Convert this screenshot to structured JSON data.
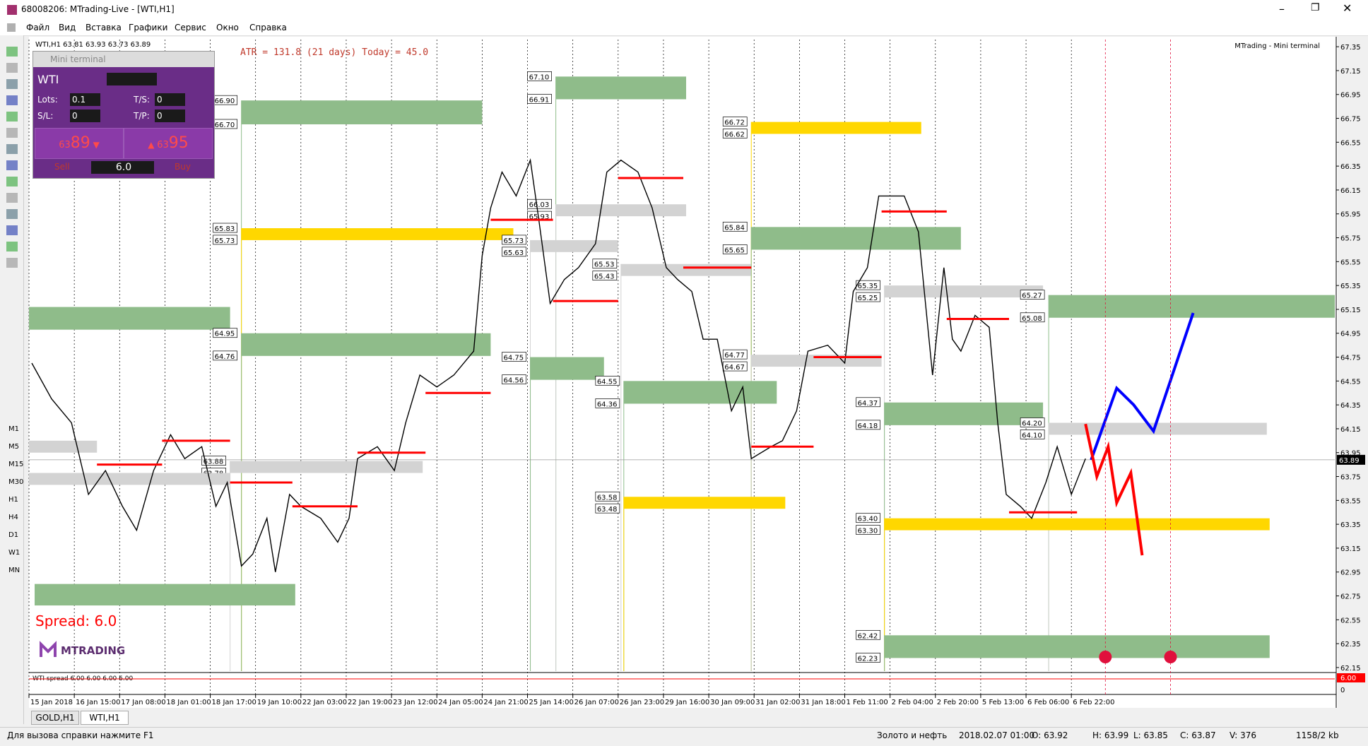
{
  "window": {
    "title": "68008206: MTrading-Live - [WTI,H1]"
  },
  "menu": [
    "Файл",
    "Вид",
    "Вставка",
    "Графики",
    "Сервис",
    "Окно",
    "Справка"
  ],
  "toolbar_timeframes": [
    "M1",
    "M5",
    "M15",
    "M30",
    "H1",
    "H4",
    "D1",
    "W1",
    "MN"
  ],
  "mini_terminal": {
    "title": "Mini terminal",
    "symbol": "WTI",
    "lots_label": "Lots:",
    "lots": "0.1",
    "ts_label": "T/S:",
    "ts": "0",
    "sl_label": "S/L:",
    "sl": "0",
    "tp_label": "T/P:",
    "tp": "0",
    "sell_small": "63",
    "sell_big": "89",
    "buy_small": "63",
    "buy_big": "95",
    "spread": "6.0",
    "sell": "Sell",
    "buy": "Buy"
  },
  "chart_data": {
    "type": "line",
    "header": "WTI,H1  63.81 63.93 63.73 63.89",
    "atr_text": "ATR = 131.8   (21 days)   Today = 45.0",
    "indicator_name": "MTrading - Mini terminal",
    "spread_text": "Spread:  6.0",
    "logo": "MTRADING",
    "color": "#000000",
    "x": [
      1,
      8,
      15,
      21,
      27,
      33,
      38,
      44,
      50,
      55,
      61,
      66,
      70,
      75,
      79,
      84,
      87,
      92,
      96,
      103,
      109,
      113,
      116,
      123,
      129,
      133,
      138,
      144,
      150,
      157,
      160,
      163,
      167,
      172,
      177,
      180,
      184,
      189,
      194,
      200,
      204,
      209,
      215,
      220,
      225,
      229,
      234,
      238,
      243,
      248,
      252,
      255,
      262,
      266,
      271,
      275,
      282,
      288,
      291,
      296,
      300,
      305,
      309,
      314,
      319,
      323,
      326,
      329,
      334,
      339,
      342,
      345,
      350,
      354,
      359,
      363,
      368,
      373
    ],
    "values": [
      64.7,
      64.4,
      64.2,
      63.6,
      63.8,
      63.5,
      63.3,
      63.8,
      64.1,
      63.9,
      64.0,
      63.5,
      63.7,
      63.0,
      63.1,
      63.4,
      62.95,
      63.6,
      63.5,
      63.4,
      63.2,
      63.4,
      63.9,
      64.0,
      63.8,
      64.2,
      64.6,
      64.5,
      64.6,
      64.8,
      65.6,
      66.0,
      66.3,
      66.1,
      66.4,
      65.9,
      65.2,
      65.4,
      65.5,
      65.7,
      66.3,
      66.4,
      66.3,
      66.0,
      65.5,
      65.4,
      65.3,
      64.9,
      64.9,
      64.3,
      64.5,
      63.9,
      64.0,
      64.05,
      64.3,
      64.8,
      64.85,
      64.7,
      65.3,
      65.5,
      66.1,
      66.1,
      66.1,
      65.8,
      64.6,
      65.5,
      64.9,
      64.8,
      65.1,
      65.0,
      64.2,
      63.6,
      63.5,
      63.4,
      63.7,
      64.0,
      63.6,
      63.9
    ],
    "xlim": [
      0,
      461
    ],
    "ylim": [
      62.12,
      67.41
    ],
    "yticks": [
      67.35,
      67.15,
      66.95,
      66.75,
      66.55,
      66.35,
      66.15,
      65.95,
      65.75,
      65.55,
      65.35,
      65.15,
      64.95,
      64.75,
      64.55,
      64.35,
      64.15,
      63.95,
      63.75,
      63.55,
      63.35,
      63.15,
      62.95,
      62.75,
      62.55,
      62.35,
      62.15
    ],
    "xticks": [
      {
        "value": 0,
        "label": "15 Jan 2018"
      },
      {
        "value": 16,
        "label": "16 Jan 15:00"
      },
      {
        "value": 32,
        "label": "17 Jan 08:00"
      },
      {
        "value": 48,
        "label": "18 Jan 01:00"
      },
      {
        "value": 64,
        "label": "18 Jan 17:00"
      },
      {
        "value": 80,
        "label": "19 Jan 10:00"
      },
      {
        "value": 96,
        "label": "22 Jan 03:00"
      },
      {
        "value": 112,
        "label": "22 Jan 19:00"
      },
      {
        "value": 128,
        "label": "23 Jan 12:00"
      },
      {
        "value": 144,
        "label": "24 Jan 05:00"
      },
      {
        "value": 160,
        "label": "24 Jan 21:00"
      },
      {
        "value": 176,
        "label": "25 Jan 14:00"
      },
      {
        "value": 192,
        "label": "26 Jan 07:00"
      },
      {
        "value": 208,
        "label": "26 Jan 23:00"
      },
      {
        "value": 224,
        "label": "29 Jan 16:00"
      },
      {
        "value": 240,
        "label": "30 Jan 09:00"
      },
      {
        "value": 256,
        "label": "31 Jan 02:00"
      },
      {
        "value": 272,
        "label": "31 Jan 18:00"
      },
      {
        "value": 288,
        "label": "1 Feb 11:00"
      },
      {
        "value": 304,
        "label": "2 Feb 04:00"
      },
      {
        "value": 320,
        "label": "2 Feb 20:00"
      },
      {
        "value": 336,
        "label": "5 Feb 13:00"
      },
      {
        "value": 352,
        "label": "6 Feb 06:00"
      },
      {
        "value": 368,
        "label": "6 Feb 22:00"
      }
    ],
    "current_price": 63.89,
    "zones": [
      {
        "x0": 75,
        "x1": 160,
        "top": 66.9,
        "bottom": 66.7,
        "top_label": "66.90",
        "bottom_label": "66.70",
        "color": "#8fbc8a"
      },
      {
        "x0": 186,
        "x1": 232,
        "top": 67.1,
        "bottom": 66.91,
        "top_label": "67.10",
        "bottom_label": "66.91",
        "color": "#8fbc8a"
      },
      {
        "x0": 255,
        "x1": 315,
        "top": 66.72,
        "bottom": 66.62,
        "top_label": "66.72",
        "bottom_label": "66.62",
        "color": "#ffd700"
      },
      {
        "x0": 75,
        "x1": 171,
        "top": 65.83,
        "bottom": 65.73,
        "top_label": "65.83",
        "bottom_label": "65.73",
        "color": "#ffd700"
      },
      {
        "x0": 186,
        "x1": 232,
        "top": 66.03,
        "bottom": 65.93,
        "top_label": "66.03",
        "bottom_label": "65.93",
        "color": "#d3d3d3"
      },
      {
        "x0": 177,
        "x1": 208,
        "top": 65.73,
        "bottom": 65.63,
        "top_label": "65.73",
        "bottom_label": "65.63",
        "color": "#d3d3d3"
      },
      {
        "x0": 209,
        "x1": 255,
        "top": 65.53,
        "bottom": 65.43,
        "top_label": "65.53",
        "bottom_label": "65.43",
        "color": "#d3d3d3"
      },
      {
        "x0": 255,
        "x1": 329,
        "top": 65.84,
        "bottom": 65.65,
        "top_label": "65.84",
        "bottom_label": "65.65",
        "color": "#8fbc8a"
      },
      {
        "x0": 302,
        "x1": 358,
        "top": 65.35,
        "bottom": 65.25,
        "top_label": "65.35",
        "bottom_label": "65.25",
        "color": "#d3d3d3"
      },
      {
        "x0": 360,
        "x1": 461,
        "top": 65.27,
        "bottom": 65.08,
        "top_label": "65.27",
        "bottom_label": "65.08",
        "color": "#8fbc8a"
      },
      {
        "x0": 0,
        "x1": 71,
        "top": 65.17,
        "bottom": 64.98,
        "color": "#8fbc8a"
      },
      {
        "x0": 75,
        "x1": 163,
        "top": 64.95,
        "bottom": 64.76,
        "top_label": "64.95",
        "bottom_label": "64.76",
        "color": "#8fbc8a"
      },
      {
        "x0": 177,
        "x1": 203,
        "top": 64.75,
        "bottom": 64.56,
        "top_label": "64.75",
        "bottom_label": "64.56",
        "color": "#8fbc8a"
      },
      {
        "x0": 255,
        "x1": 301,
        "top": 64.77,
        "bottom": 64.67,
        "top_label": "64.77",
        "bottom_label": "64.67",
        "color": "#d3d3d3"
      },
      {
        "x0": 210,
        "x1": 264,
        "top": 64.55,
        "bottom": 64.36,
        "top_label": "64.55",
        "bottom_label": "64.36",
        "color": "#8fbc8a"
      },
      {
        "x0": 302,
        "x1": 358,
        "top": 64.37,
        "bottom": 64.18,
        "top_label": "64.37",
        "bottom_label": "64.18",
        "color": "#8fbc8a"
      },
      {
        "x0": 360,
        "x1": 437,
        "top": 64.2,
        "bottom": 64.1,
        "top_label": "64.20",
        "bottom_label": "64.10",
        "color": "#d3d3d3"
      },
      {
        "x0": 0,
        "x1": 24,
        "top": 64.05,
        "bottom": 63.95,
        "color": "#d3d3d3"
      },
      {
        "x0": 71,
        "x1": 139,
        "top": 63.88,
        "bottom": 63.78,
        "top_label": "63.88",
        "bottom_label": "63.78",
        "color": "#d3d3d3"
      },
      {
        "x0": 0,
        "x1": 71,
        "top": 63.78,
        "bottom": 63.68,
        "color": "#d3d3d3"
      },
      {
        "x0": 210,
        "x1": 267,
        "top": 63.58,
        "bottom": 63.48,
        "top_label": "63.58",
        "bottom_label": "63.48",
        "color": "#ffd700"
      },
      {
        "x0": 302,
        "x1": 438,
        "top": 63.4,
        "bottom": 63.3,
        "top_label": "63.40",
        "bottom_label": "63.30",
        "color": "#ffd700"
      },
      {
        "x0": 2,
        "x1": 94,
        "top": 62.85,
        "bottom": 62.67,
        "color": "#8fbc8a"
      },
      {
        "x0": 302,
        "x1": 438,
        "top": 62.42,
        "bottom": 62.23,
        "top_label": "62.42",
        "bottom_label": "62.23",
        "color": "#8fbc8a"
      }
    ],
    "levels": {
      "color": "#ff0000",
      "x0": [
        24,
        47,
        71,
        93,
        116,
        140,
        163,
        185,
        208,
        231,
        255,
        277,
        301,
        324,
        346
      ],
      "x1": [
        47,
        71,
        93,
        116,
        140,
        163,
        185,
        208,
        231,
        255,
        277,
        301,
        324,
        346,
        370
      ],
      "values": [
        63.85,
        64.05,
        63.7,
        63.5,
        63.95,
        64.45,
        65.9,
        65.22,
        66.25,
        65.5,
        64.0,
        64.75,
        65.97,
        65.07,
        63.45
      ]
    },
    "forecasts": [
      {
        "color": "#0000ff",
        "x": [
          375,
          384,
          390,
          397,
          411
        ],
        "values": [
          63.89,
          64.49,
          64.35,
          64.13,
          65.12
        ]
      },
      {
        "color": "#ff0000",
        "x": [
          373,
          377,
          381,
          384,
          389,
          393
        ],
        "values": [
          64.19,
          63.75,
          64.0,
          63.53,
          63.78,
          63.09
        ]
      }
    ],
    "alerts": {
      "color": "#e0103c",
      "x": [
        380,
        403
      ]
    },
    "subwindow": {
      "label": "WTI spread 6.00 6.00 6.00 6.00",
      "top_tick": "6.00",
      "bottom_tick": "0"
    }
  },
  "tabs": [
    "GOLD,H1",
    "WTI,H1"
  ],
  "status": [
    "Для вызова справки нажмите F1",
    "Золото и нефть",
    "2018.02.07 01:00",
    "O: 63.92",
    "H: 63.99",
    "L: 63.85",
    "C: 63.87",
    "V: 376",
    "1158/2 kb"
  ]
}
